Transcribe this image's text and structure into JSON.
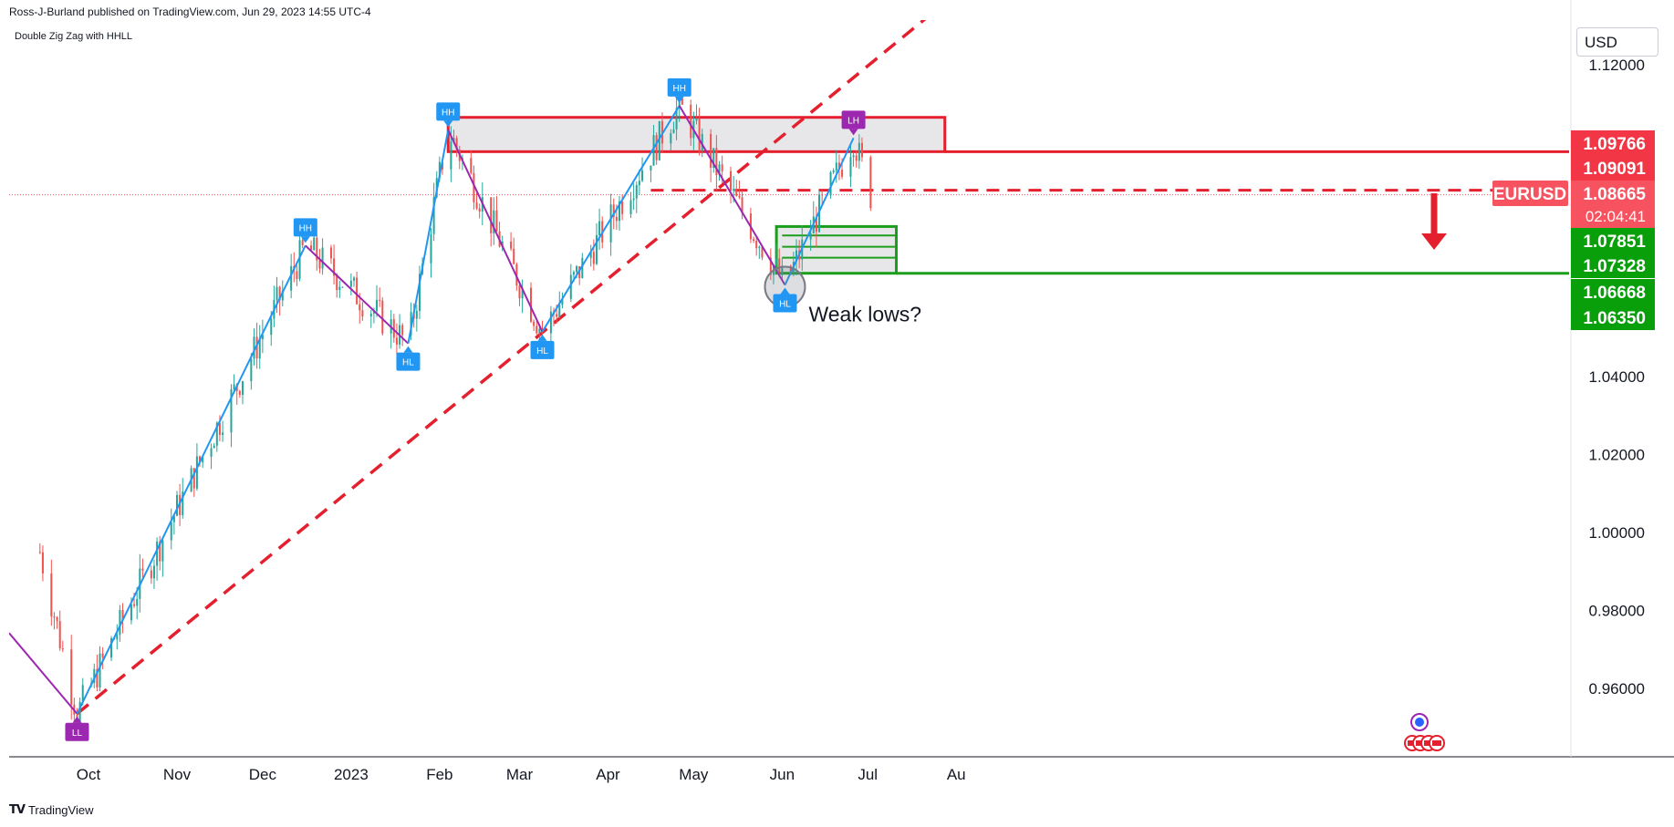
{
  "header": {
    "published": "Ross-J-Burland published on TradingView.com, Jun 29, 2023 14:55 UTC-4",
    "indicator": "Double Zig Zag with HHLL"
  },
  "footer": {
    "brand": "TradingView"
  },
  "axis": {
    "currency": "USD"
  },
  "colors": {
    "up": "#26a69a",
    "down": "#ef5350",
    "zig_blue": "#2196f3",
    "zig_purple": "#9c27b0",
    "trend": "#e5202e",
    "supply": "#e5202e",
    "demand": "#1b9e1b"
  },
  "chart_data": {
    "type": "candlestick",
    "symbol": "EURUSD",
    "last_price": "1.08665",
    "countdown": "02:04:41",
    "ylim": [
      0.946,
      1.1265
    ],
    "y_ticks": [
      "1.12000",
      "1.04000",
      "1.02000",
      "1.00000",
      "0.98000",
      "0.96000"
    ],
    "x_ticks": [
      "Oct",
      "Nov",
      "Dec",
      "2023",
      "Feb",
      "Mar",
      "Apr",
      "May",
      "Jun",
      "Jul",
      "Au"
    ],
    "x_ticks_days": [
      0,
      31,
      61,
      92,
      123,
      151,
      182,
      212,
      243,
      273,
      304
    ],
    "x_origin": "2022-10-01",
    "start_day": -17,
    "price_labels": [
      {
        "value": "1.09766",
        "kind": "supply"
      },
      {
        "value": "1.09091",
        "kind": "supply"
      },
      {
        "value": "1.07851",
        "kind": "demand"
      },
      {
        "value": "1.07328",
        "kind": "demand"
      },
      {
        "value": "1.06668",
        "kind": "demand"
      },
      {
        "value": "1.06350",
        "kind": "demand"
      }
    ],
    "zigzag_pivots": [
      {
        "label": "LL",
        "day": -4,
        "price": 0.9535,
        "type": "low"
      },
      {
        "label": "HH",
        "day": 76,
        "price": 1.0736,
        "type": "high"
      },
      {
        "label": "HL",
        "day": 112,
        "price": 1.0485,
        "type": "low"
      },
      {
        "label": "HH",
        "day": 126,
        "price": 1.1033,
        "type": "high"
      },
      {
        "label": "HL",
        "day": 159,
        "price": 1.0515,
        "type": "low"
      },
      {
        "label": "HH",
        "day": 207,
        "price": 1.1095,
        "type": "high"
      },
      {
        "label": "HL",
        "day": 244,
        "price": 1.0635,
        "type": "low"
      },
      {
        "label": "LH",
        "day": 268,
        "price": 1.1012,
        "type": "high"
      }
    ],
    "trendline": [
      {
        "day": -4,
        "price": 0.9535
      },
      {
        "day": 156,
        "price": 1.0495
      }
    ],
    "supply_zone": {
      "from_day": 126,
      "to_day": 300,
      "top": 1.1065,
      "bottom": 1.0977
    },
    "demand_zone": {
      "from_day": 241,
      "to_day": 283,
      "top": 1.0785,
      "bottom": 1.0665
    },
    "resistance_level": 1.0878,
    "annotation": "Weak lows?",
    "candles": []
  }
}
